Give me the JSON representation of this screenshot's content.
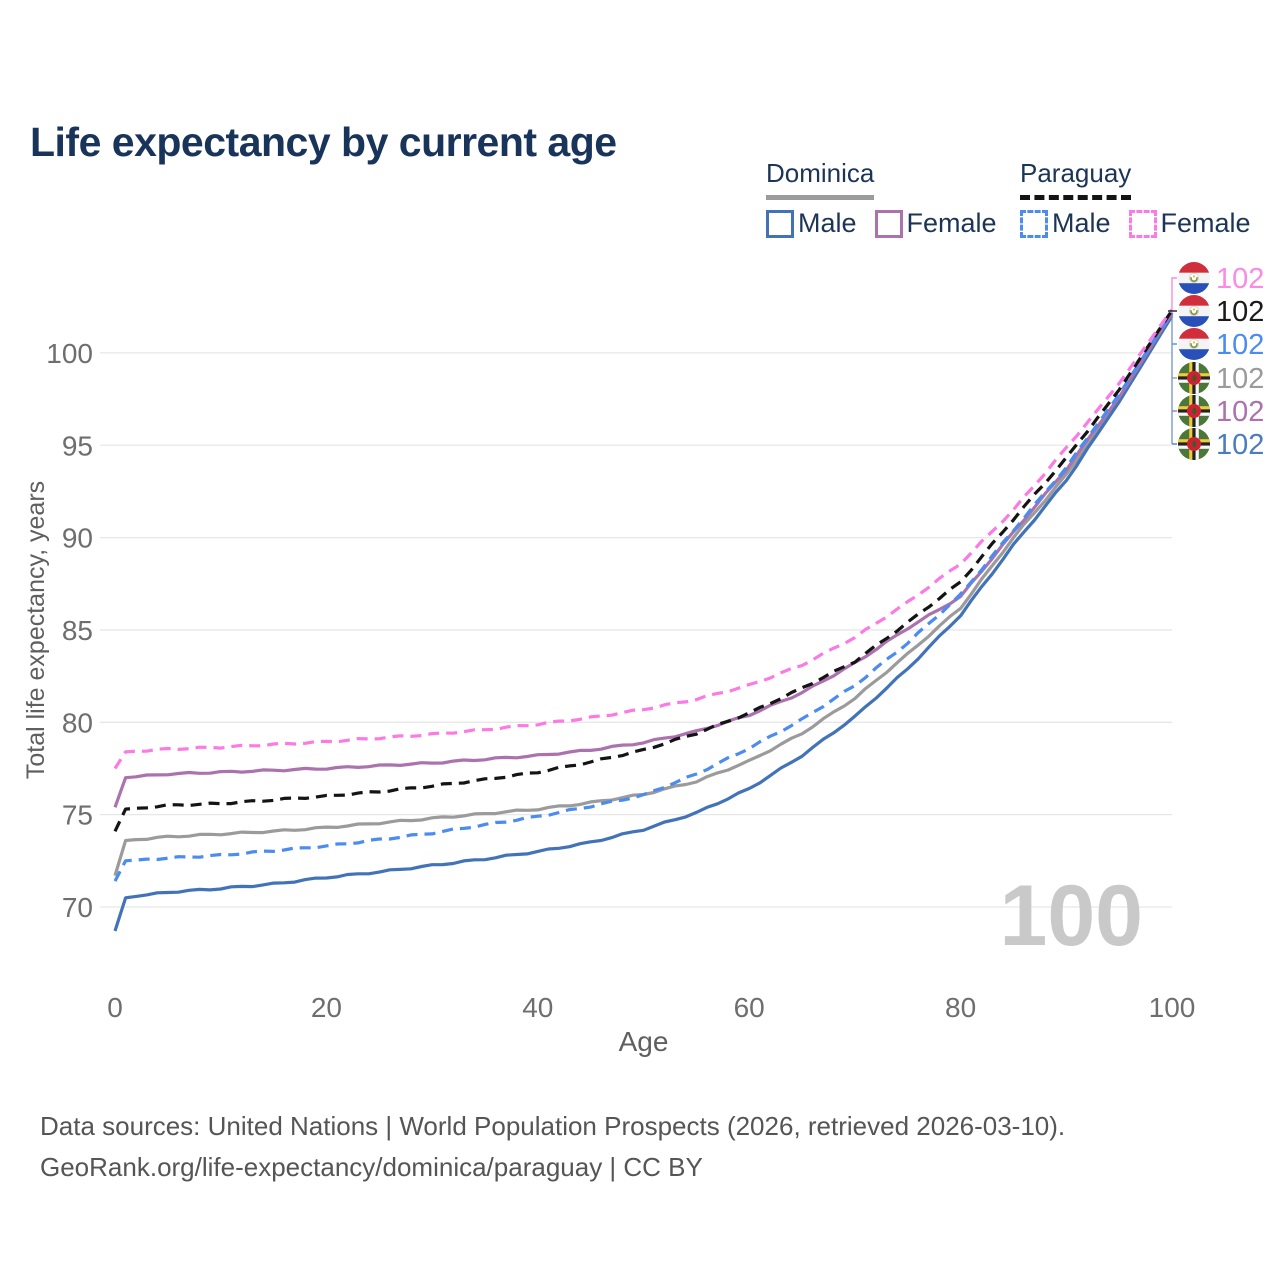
{
  "title": "Life expectancy by current age",
  "legend": {
    "dominica": {
      "label": "Dominica",
      "male": "Male",
      "female": "Female"
    },
    "paraguay": {
      "label": "Paraguay",
      "male": "Male",
      "female": "Female"
    }
  },
  "watermark": "100",
  "footer": {
    "line1": "Data sources: United Nations | World Population Prospects (2026, retrieved 2026-03-10).",
    "line2": "GeoRank.org/life-expectancy/dominica/paraguay | CC BY"
  },
  "colors": {
    "title_text": "#19345a",
    "axis_text": "#6e6e6e",
    "grid": "#e7e7e7",
    "watermark": "#c9c9c9",
    "connector_blue": "#7292cc"
  },
  "chart_data": {
    "type": "line",
    "xlabel": "Age",
    "ylabel": "Total life expectancy, years",
    "xlim": [
      0,
      100
    ],
    "ylim": [
      67.5,
      104
    ],
    "xticks": [
      0,
      20,
      40,
      60,
      80,
      100
    ],
    "yticks": [
      70,
      75,
      80,
      85,
      90,
      95,
      100
    ],
    "grid": "horizontal-only",
    "legend_position": "top-right",
    "x": [
      0,
      1,
      5,
      10,
      15,
      20,
      25,
      30,
      35,
      40,
      45,
      50,
      55,
      60,
      65,
      70,
      75,
      80,
      85,
      90,
      95,
      100
    ],
    "series": [
      {
        "id": "dominica-both",
        "name": "Dominica",
        "sex": "Both",
        "color": "#9b9b9b",
        "dash": "solid",
        "flag": "dominica",
        "end_label": "102",
        "end_label_color": "#9b9b9b",
        "values": [
          71.7,
          73.6,
          73.8,
          73.95,
          74.1,
          74.3,
          74.55,
          74.8,
          75.05,
          75.3,
          75.65,
          76.1,
          76.8,
          77.9,
          79.4,
          81.3,
          83.7,
          86.2,
          90.0,
          93.4,
          97.5,
          102.1
        ]
      },
      {
        "id": "dominica-male",
        "name": "Dominica Male",
        "sex": "Male",
        "color": "#4273b9",
        "dash": "solid",
        "flag": "dominica",
        "end_label": "102",
        "end_label_color": "#4a7cc0",
        "values": [
          68.7,
          70.5,
          70.8,
          71.0,
          71.25,
          71.6,
          71.9,
          72.25,
          72.6,
          73.0,
          73.5,
          74.2,
          75.1,
          76.4,
          78.2,
          80.3,
          82.9,
          85.8,
          89.6,
          93.1,
          97.35,
          102.0
        ]
      },
      {
        "id": "dominica-female",
        "name": "Dominica Female",
        "sex": "Female",
        "color": "#ab72ae",
        "dash": "solid",
        "flag": "dominica",
        "end_label": "102",
        "end_label_color": "#ab72ae",
        "values": [
          75.4,
          77.0,
          77.2,
          77.3,
          77.4,
          77.5,
          77.65,
          77.8,
          78.0,
          78.2,
          78.5,
          78.9,
          79.5,
          80.4,
          81.6,
          83.2,
          85.1,
          86.8,
          90.3,
          93.7,
          97.6,
          102.15
        ]
      },
      {
        "id": "paraguay-male",
        "name": "Paraguay Male",
        "sex": "Male",
        "color": "#4c8cf0",
        "dash": "dashed",
        "flag": "paraguay",
        "end_label": "102",
        "end_label_color": "#4c8cf0",
        "values": [
          71.4,
          72.5,
          72.65,
          72.8,
          73.05,
          73.3,
          73.65,
          74.0,
          74.45,
          74.9,
          75.45,
          76.05,
          77.2,
          78.6,
          80.15,
          82.0,
          84.3,
          86.9,
          90.4,
          93.8,
          97.75,
          102.2
        ]
      },
      {
        "id": "paraguay-both",
        "name": "Paraguay",
        "sex": "Both",
        "color": "#141414",
        "dash": "dashed",
        "flag": "paraguay",
        "end_label": "102",
        "end_label_color": "#1a1a1a",
        "values": [
          74.1,
          75.3,
          75.5,
          75.6,
          75.8,
          76.0,
          76.25,
          76.55,
          76.9,
          77.3,
          77.85,
          78.5,
          79.4,
          80.5,
          81.85,
          83.3,
          85.4,
          87.6,
          91.0,
          94.3,
          98.0,
          102.3
        ]
      },
      {
        "id": "paraguay-female",
        "name": "Paraguay Female",
        "sex": "Female",
        "color": "#fb7ae3",
        "dash": "dashed",
        "flag": "paraguay",
        "end_label": "102",
        "end_label_color": "#fb8ae4",
        "values": [
          77.5,
          78.4,
          78.55,
          78.65,
          78.8,
          78.95,
          79.15,
          79.35,
          79.6,
          79.9,
          80.25,
          80.7,
          81.25,
          82.0,
          83.1,
          84.6,
          86.5,
          88.6,
          91.5,
          94.85,
          98.35,
          102.35
        ]
      }
    ],
    "end_labels_order": [
      "paraguay-female",
      "paraguay-both",
      "paraguay-male",
      "dominica-both",
      "dominica-female",
      "dominica-male"
    ]
  }
}
